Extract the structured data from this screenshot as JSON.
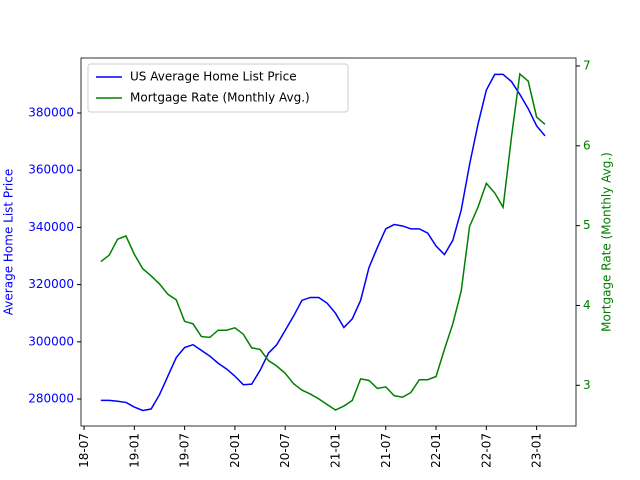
{
  "chart_data": {
    "type": "line",
    "ylabel": "Average Home List Price",
    "y2label": "Mortgage Rate (Monthly Avg.)",
    "legend": "upper left",
    "x": [
      "2018-09",
      "2018-10",
      "2018-11",
      "2018-12",
      "2019-01",
      "2019-02",
      "2019-03",
      "2019-04",
      "2019-05",
      "2019-06",
      "2019-07",
      "2019-08",
      "2019-09",
      "2019-10",
      "2019-11",
      "2019-12",
      "2020-01",
      "2020-02",
      "2020-03",
      "2020-04",
      "2020-05",
      "2020-06",
      "2020-07",
      "2020-08",
      "2020-09",
      "2020-10",
      "2020-11",
      "2020-12",
      "2021-01",
      "2021-02",
      "2021-03",
      "2021-04",
      "2021-05",
      "2021-06",
      "2021-07",
      "2021-08",
      "2021-09",
      "2021-10",
      "2021-11",
      "2021-12",
      "2022-01",
      "2022-02",
      "2022-03",
      "2022-04",
      "2022-05",
      "2022-06",
      "2022-07",
      "2022-08",
      "2022-09",
      "2022-10",
      "2022-11",
      "2022-12",
      "2023-01",
      "2023-02"
    ],
    "series": [
      {
        "name": "US Average Home List Price",
        "color": "blue",
        "values": [
          279500,
          279500,
          279200,
          278800,
          277200,
          276000,
          276500,
          281500,
          288000,
          294500,
          298000,
          299000,
          297000,
          295000,
          292500,
          290500,
          288000,
          285000,
          285200,
          290000,
          296000,
          299000,
          304000,
          309000,
          314500,
          315500,
          315500,
          313500,
          310000,
          305000,
          308000,
          314500,
          326000,
          333000,
          339500,
          341000,
          340500,
          339500,
          339500,
          338000,
          333500,
          330500,
          335500,
          346000,
          362000,
          376000,
          388000,
          393500,
          393500,
          391000,
          386500,
          381500,
          375500,
          372000
        ]
      },
      {
        "name": "Mortgage Rate (Monthly Avg.)",
        "color": "green",
        "axis": "y2",
        "values": [
          4.55,
          4.63,
          4.83,
          4.87,
          4.64,
          4.46,
          4.37,
          4.27,
          4.14,
          4.07,
          3.8,
          3.77,
          3.61,
          3.6,
          3.69,
          3.69,
          3.72,
          3.64,
          3.47,
          3.45,
          3.31,
          3.24,
          3.15,
          3.02,
          2.94,
          2.89,
          2.83,
          2.76,
          2.69,
          2.74,
          2.81,
          3.08,
          3.06,
          2.96,
          2.98,
          2.87,
          2.85,
          2.91,
          3.07,
          3.07,
          3.11,
          3.45,
          3.77,
          4.18,
          4.99,
          5.23,
          5.53,
          5.41,
          5.23,
          6.11,
          6.9,
          6.81,
          6.36,
          6.27
        ]
      }
    ],
    "xlim": [
      "2018-06-20",
      "2023-05-22"
    ],
    "xticks": [
      {
        "value": "2018-07",
        "label": "18-07"
      },
      {
        "value": "2019-01",
        "label": "19-01"
      },
      {
        "value": "2019-07",
        "label": "19-07"
      },
      {
        "value": "2020-01",
        "label": "20-01"
      },
      {
        "value": "2020-07",
        "label": "20-07"
      },
      {
        "value": "2021-01",
        "label": "21-01"
      },
      {
        "value": "2021-07",
        "label": "21-07"
      },
      {
        "value": "2022-01",
        "label": "22-01"
      },
      {
        "value": "2022-07",
        "label": "22-07"
      },
      {
        "value": "2023-01",
        "label": "23-01"
      }
    ],
    "ylim": [
      270560,
      399230
    ],
    "yticks": [
      280000,
      300000,
      320000,
      340000,
      360000,
      380000
    ],
    "y2lim": [
      2.49,
      7.1
    ],
    "y2ticks": [
      3,
      4,
      5,
      6,
      7
    ]
  }
}
